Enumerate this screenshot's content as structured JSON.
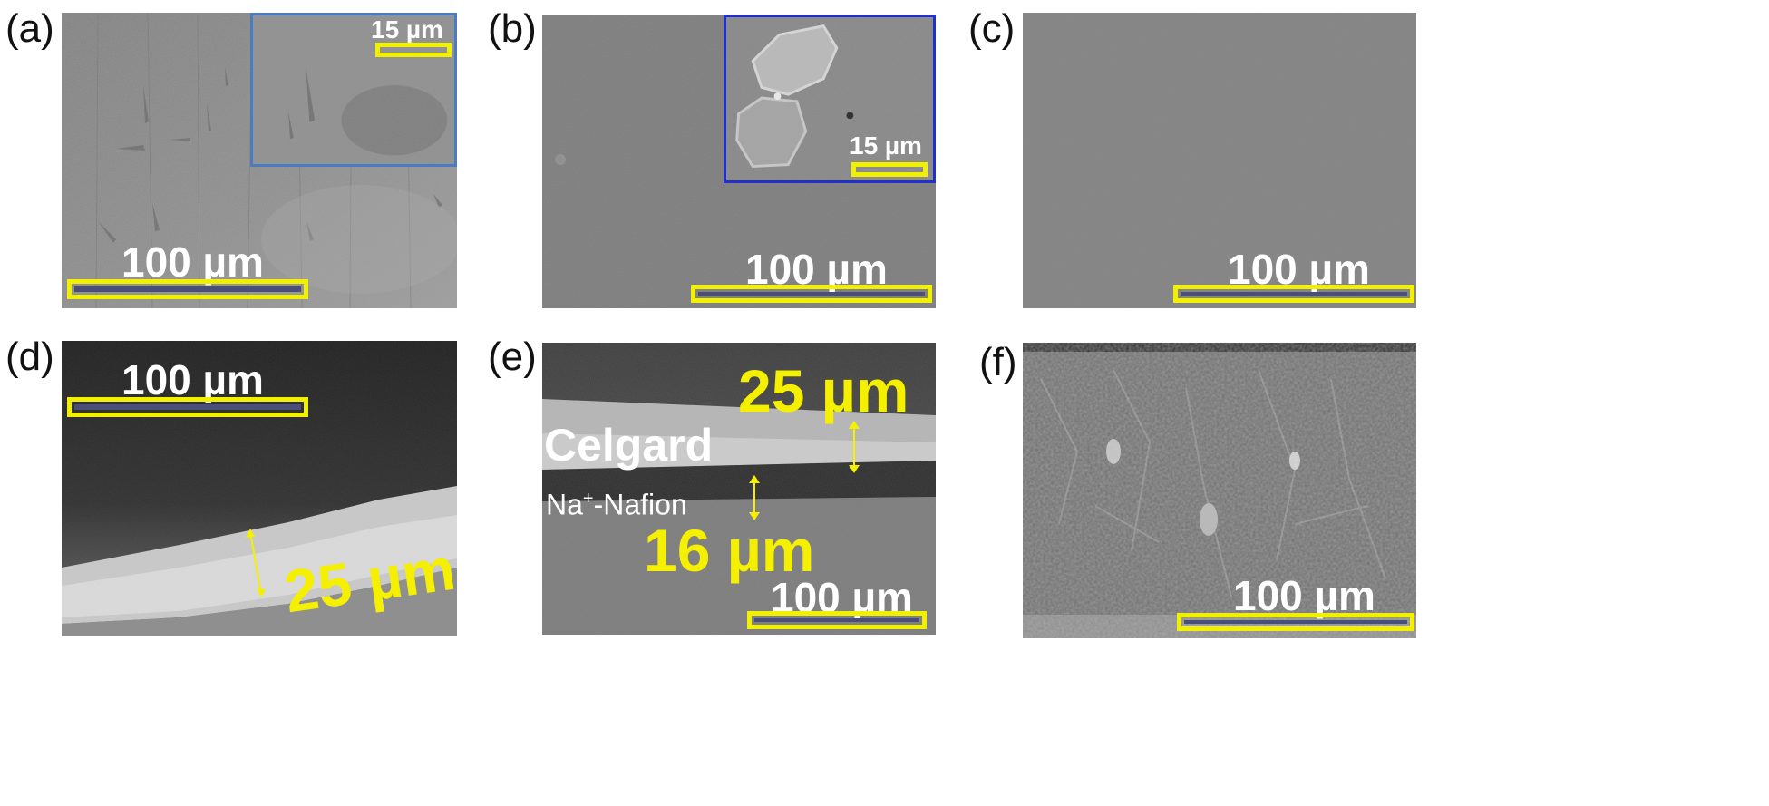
{
  "panels": {
    "a": {
      "label": "(a)",
      "scale_bar": "100 µm",
      "inset": {
        "scale_bar": "15 µm",
        "border_color": "#4b7cc0"
      }
    },
    "b": {
      "label": "(b)",
      "scale_bar": "100 µm",
      "inset": {
        "scale_bar": "15 µm",
        "border_color": "#1f2fd0"
      }
    },
    "c": {
      "label": "(c)",
      "scale_bar": "100 µm"
    },
    "d": {
      "label": "(d)",
      "scale_bar": "100 µm",
      "thickness": "25 µm"
    },
    "e": {
      "label": "(e)",
      "scale_bar": "100 µm",
      "layer_top": "Celgard",
      "layer_bottom_prefix": "Na",
      "layer_bottom_sup": "+",
      "layer_bottom_suffix": "-Nafion",
      "thickness_top": "25 µm",
      "thickness_bottom": "16 µm"
    },
    "f": {
      "label": "(f)",
      "scale_bar": "100 µm"
    }
  },
  "colors": {
    "scale_bar": "#f0f000",
    "measurement_text": "#f5f000",
    "scale_text": "#ffffff"
  }
}
